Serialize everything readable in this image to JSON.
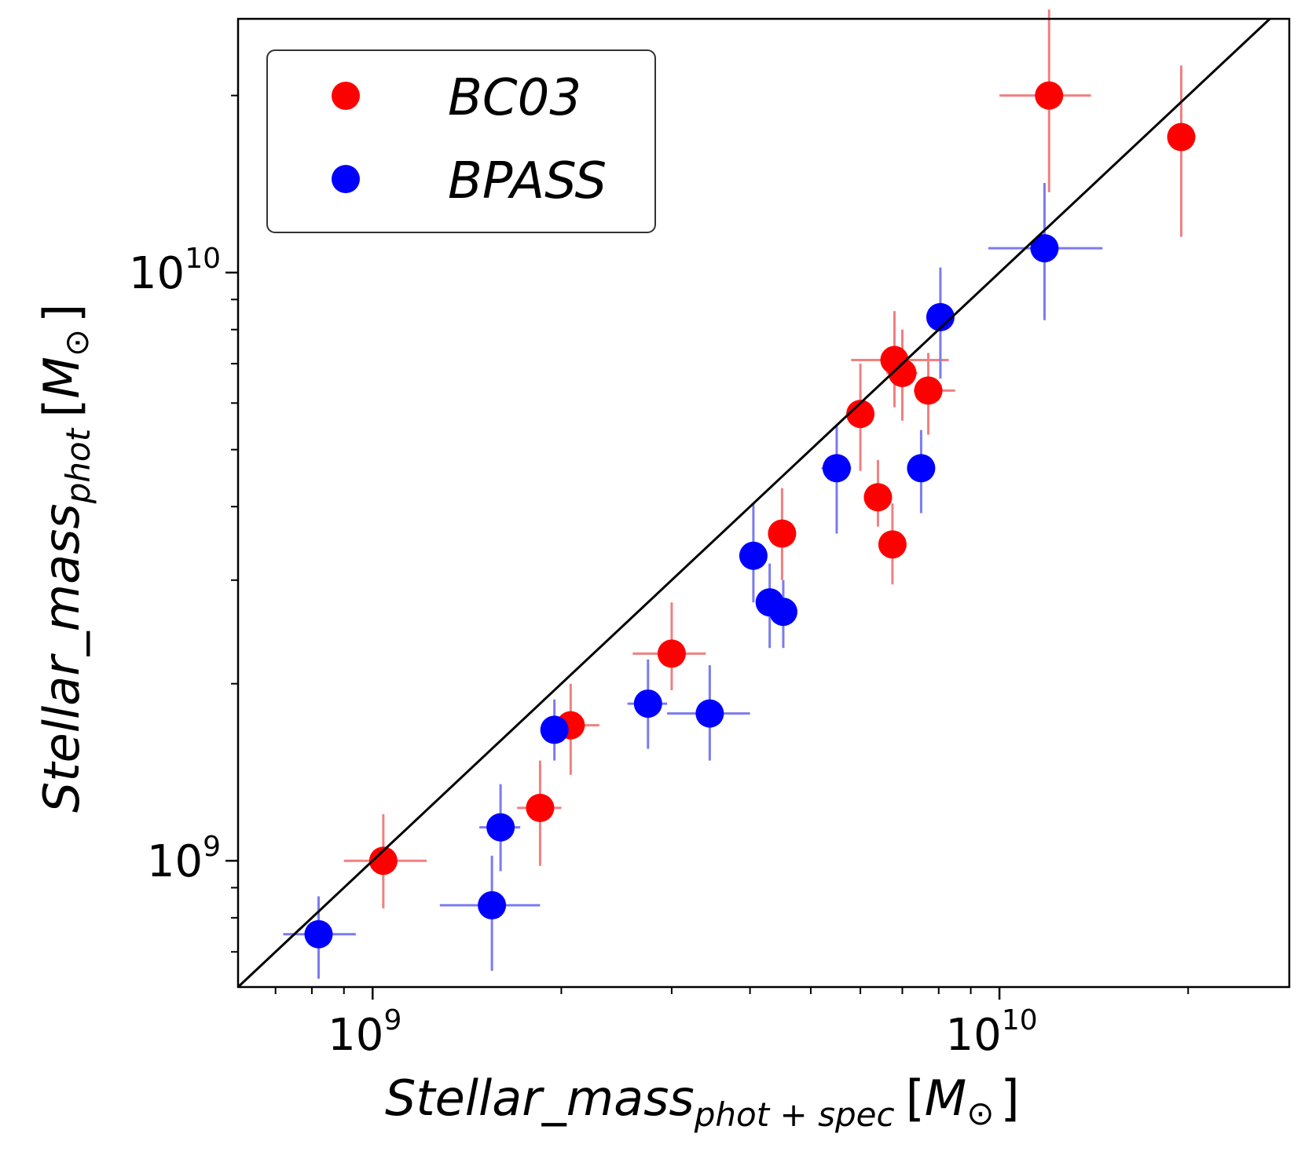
{
  "chart_data": {
    "type": "scatter",
    "axes_scale": "log",
    "xlim": [
      610000000.0,
      29000000000.0
    ],
    "ylim": [
      610000000.0,
      27000000000.0
    ],
    "x_ticks": [
      {
        "base": "10",
        "exp": "9",
        "value": 1000000000.0
      },
      {
        "base": "10",
        "exp": "10",
        "value": 10000000000.0
      }
    ],
    "y_ticks": [
      {
        "base": "10",
        "exp": "9",
        "value": 1000000000.0
      },
      {
        "base": "10",
        "exp": "10",
        "value": 10000000000.0
      }
    ],
    "xlabel": {
      "main": "Stellar_mass",
      "sub": "phot + spec",
      "open": "[",
      "unit": "M",
      "sun": "⊙",
      "close": "]"
    },
    "ylabel": {
      "main": "Stellar_mass",
      "sub": "phot",
      "open": "[",
      "unit": "M",
      "sun": "⊙",
      "close": "]"
    },
    "reference_line": {
      "type": "one-to-one",
      "color": "#000000"
    },
    "legend": {
      "position": "top-left"
    },
    "series": [
      {
        "name": "BC03",
        "color": "#ff0000",
        "error_color": "#f08080",
        "points": [
          {
            "x": 1040000000.0,
            "y": 1000000000.0,
            "xerr": [
              900000000.0,
              1220000000.0
            ],
            "yerr": [
              830000000.0,
              1200000000.0
            ]
          },
          {
            "x": 1850000000.0,
            "y": 1230000000.0,
            "xerr": [
              1700000000.0,
              2000000000.0
            ],
            "yerr": [
              980000000.0,
              1480000000.0
            ]
          },
          {
            "x": 2070000000.0,
            "y": 1700000000.0,
            "xerr": [
              1900000000.0,
              2300000000.0
            ],
            "yerr": [
              1400000000.0,
              2000000000.0
            ]
          },
          {
            "x": 3000000000.0,
            "y": 2250000000.0,
            "xerr": [
              2600000000.0,
              3400000000.0
            ],
            "yerr": [
              1950000000.0,
              2750000000.0
            ]
          },
          {
            "x": 4500000000.0,
            "y": 3600000000.0,
            "xerr": [
              4300000000.0,
              4700000000.0
            ],
            "yerr": [
              3000000000.0,
              4300000000.0
            ]
          },
          {
            "x": 6000000000.0,
            "y": 5750000000.0,
            "xerr": [
              5700000000.0,
              6300000000.0
            ],
            "yerr": [
              4600000000.0,
              7000000000.0
            ]
          },
          {
            "x": 6400000000.0,
            "y": 4150000000.0,
            "xerr": [
              6200000000.0,
              6600000000.0
            ],
            "yerr": [
              3700000000.0,
              4800000000.0
            ]
          },
          {
            "x": 6750000000.0,
            "y": 3450000000.0,
            "xerr": [
              6550000000.0,
              6950000000.0
            ],
            "yerr": [
              2950000000.0,
              4050000000.0
            ]
          },
          {
            "x": 6800000000.0,
            "y": 7100000000.0,
            "xerr": [
              5800000000.0,
              8300000000.0
            ],
            "yerr": [
              5900000000.0,
              8600000000.0
            ]
          },
          {
            "x": 7000000000.0,
            "y": 6750000000.0,
            "xerr": [
              6600000000.0,
              7400000000.0
            ],
            "yerr": [
              5600000000.0,
              8000000000.0
            ]
          },
          {
            "x": 7700000000.0,
            "y": 6300000000.0,
            "xerr": [
              7300000000.0,
              8500000000.0
            ],
            "yerr": [
              5300000000.0,
              7300000000.0
            ]
          },
          {
            "x": 12000000000.0,
            "y": 20000000000.0,
            "xerr": [
              10000000000.0,
              14000000000.0
            ],
            "yerr": [
              13700000000.0,
              28000000000.0
            ]
          },
          {
            "x": 19500000000.0,
            "y": 17000000000.0,
            "xerr": [
              19000000000.0,
              20000000000.0
            ],
            "yerr": [
              11500000000.0,
              22500000000.0
            ]
          }
        ]
      },
      {
        "name": "BPASS",
        "color": "#0000ff",
        "error_color": "#7b7bf0",
        "points": [
          {
            "x": 820000000.0,
            "y": 750000000.0,
            "xerr": [
              720000000.0,
              940000000.0
            ],
            "yerr": [
              630000000.0,
              870000000.0
            ]
          },
          {
            "x": 1550000000.0,
            "y": 840000000.0,
            "xerr": [
              1280000000.0,
              1850000000.0
            ],
            "yerr": [
              650000000.0,
              1020000000.0
            ]
          },
          {
            "x": 1600000000.0,
            "y": 1140000000.0,
            "xerr": [
              1480000000.0,
              1720000000.0
            ],
            "yerr": [
              960000000.0,
              1350000000.0
            ]
          },
          {
            "x": 1950000000.0,
            "y": 1670000000.0,
            "xerr": [
              1900000000.0,
              2000000000.0
            ],
            "yerr": [
              1480000000.0,
              1880000000.0
            ]
          },
          {
            "x": 2750000000.0,
            "y": 1850000000.0,
            "xerr": [
              2550000000.0,
              2950000000.0
            ],
            "yerr": [
              1550000000.0,
              2200000000.0
            ]
          },
          {
            "x": 3450000000.0,
            "y": 1780000000.0,
            "xerr": [
              2950000000.0,
              4000000000.0
            ],
            "yerr": [
              1480000000.0,
              2150000000.0
            ]
          },
          {
            "x": 4050000000.0,
            "y": 3300000000.0,
            "xerr": [
              3900000000.0,
              4200000000.0
            ],
            "yerr": [
              2750000000.0,
              4050000000.0
            ]
          },
          {
            "x": 4300000000.0,
            "y": 2750000000.0,
            "xerr": [
              4100000000.0,
              4500000000.0
            ],
            "yerr": [
              2300000000.0,
              3200000000.0
            ]
          },
          {
            "x": 4520000000.0,
            "y": 2650000000.0,
            "xerr": [
              4350000000.0,
              4700000000.0
            ],
            "yerr": [
              2300000000.0,
              3000000000.0
            ]
          },
          {
            "x": 5500000000.0,
            "y": 4650000000.0,
            "xerr": [
              5200000000.0,
              5800000000.0
            ],
            "yerr": [
              3600000000.0,
              5500000000.0
            ]
          },
          {
            "x": 7500000000.0,
            "y": 4650000000.0,
            "xerr": [
              7200000000.0,
              7800000000.0
            ],
            "yerr": [
              3900000000.0,
              5400000000.0
            ]
          },
          {
            "x": 8050000000.0,
            "y": 8400000000.0,
            "xerr": [
              7800000000.0,
              8300000000.0
            ],
            "yerr": [
              6600000000.0,
              10200000000.0
            ]
          },
          {
            "x": 11800000000.0,
            "y": 11000000000.0,
            "xerr": [
              9600000000.0,
              14600000000.0
            ],
            "yerr": [
              8300000000.0,
              14200000000.0
            ]
          }
        ]
      }
    ]
  }
}
